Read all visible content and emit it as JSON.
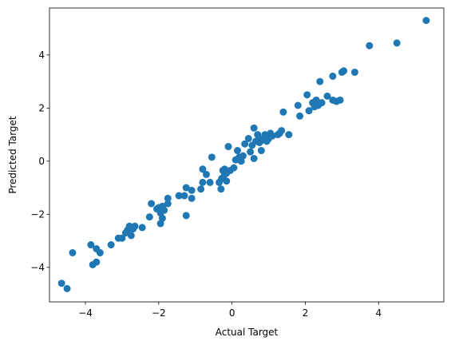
{
  "chart_data": {
    "type": "scatter",
    "title": "",
    "xlabel": "Actual Target",
    "ylabel": "Predicted Target",
    "xlim": [
      -4.98,
      5.78
    ],
    "ylim": [
      -5.3,
      5.77
    ],
    "xticks": [
      -4,
      -2,
      0,
      2,
      4
    ],
    "yticks": [
      -4,
      -2,
      0,
      2,
      4
    ],
    "xtick_labels": [
      "−4",
      "−2",
      "0",
      "2",
      "4"
    ],
    "ytick_labels": [
      "−4",
      "−2",
      "0",
      "2",
      "4"
    ],
    "grid": false,
    "legend": "none",
    "marker_color": "#1f77b4",
    "series": [
      {
        "points": [
          {
            "x": -4.65,
            "y": -4.6
          },
          {
            "x": -4.5,
            "y": -4.8
          },
          {
            "x": -4.35,
            "y": -3.45
          },
          {
            "x": -3.85,
            "y": -3.15
          },
          {
            "x": -3.8,
            "y": -3.9
          },
          {
            "x": -3.7,
            "y": -3.8
          },
          {
            "x": -3.7,
            "y": -3.3
          },
          {
            "x": -3.6,
            "y": -3.45
          },
          {
            "x": -3.3,
            "y": -3.15
          },
          {
            "x": -3.1,
            "y": -2.9
          },
          {
            "x": -3.0,
            "y": -2.9
          },
          {
            "x": -2.9,
            "y": -2.7
          },
          {
            "x": -2.85,
            "y": -2.6
          },
          {
            "x": -2.8,
            "y": -2.45
          },
          {
            "x": -2.75,
            "y": -2.8
          },
          {
            "x": -2.7,
            "y": -2.55
          },
          {
            "x": -2.65,
            "y": -2.45
          },
          {
            "x": -2.45,
            "y": -2.5
          },
          {
            "x": -2.25,
            "y": -2.1
          },
          {
            "x": -2.2,
            "y": -1.6
          },
          {
            "x": -2.05,
            "y": -1.8
          },
          {
            "x": -2.0,
            "y": -1.75
          },
          {
            "x": -1.95,
            "y": -2.35
          },
          {
            "x": -1.95,
            "y": -1.95
          },
          {
            "x": -1.9,
            "y": -2.15
          },
          {
            "x": -1.9,
            "y": -1.7
          },
          {
            "x": -1.85,
            "y": -1.85
          },
          {
            "x": -1.75,
            "y": -1.4
          },
          {
            "x": -1.75,
            "y": -1.6
          },
          {
            "x": -1.45,
            "y": -1.3
          },
          {
            "x": -1.3,
            "y": -1.3
          },
          {
            "x": -1.25,
            "y": -2.05
          },
          {
            "x": -1.25,
            "y": -1.0
          },
          {
            "x": -1.1,
            "y": -1.4
          },
          {
            "x": -1.1,
            "y": -1.1
          },
          {
            "x": -0.85,
            "y": -1.05
          },
          {
            "x": -0.8,
            "y": -0.8
          },
          {
            "x": -0.8,
            "y": -0.3
          },
          {
            "x": -0.7,
            "y": -0.5
          },
          {
            "x": -0.6,
            "y": -0.8
          },
          {
            "x": -0.55,
            "y": 0.15
          },
          {
            "x": -0.35,
            "y": -0.8
          },
          {
            "x": -0.3,
            "y": -1.05
          },
          {
            "x": -0.28,
            "y": -0.65
          },
          {
            "x": -0.25,
            "y": -0.35
          },
          {
            "x": -0.2,
            "y": -0.3
          },
          {
            "x": -0.2,
            "y": -0.5
          },
          {
            "x": -0.15,
            "y": -0.75
          },
          {
            "x": -0.15,
            "y": -0.45
          },
          {
            "x": -0.1,
            "y": 0.55
          },
          {
            "x": -0.05,
            "y": -0.35
          },
          {
            "x": 0.05,
            "y": -0.25
          },
          {
            "x": 0.1,
            "y": 0.05
          },
          {
            "x": 0.15,
            "y": 0.4
          },
          {
            "x": 0.2,
            "y": 0.15
          },
          {
            "x": 0.25,
            "y": 0.0
          },
          {
            "x": 0.3,
            "y": 0.2
          },
          {
            "x": 0.35,
            "y": 0.65
          },
          {
            "x": 0.45,
            "y": 0.85
          },
          {
            "x": 0.5,
            "y": 0.35
          },
          {
            "x": 0.55,
            "y": 0.6
          },
          {
            "x": 0.6,
            "y": 1.25
          },
          {
            "x": 0.6,
            "y": 0.1
          },
          {
            "x": 0.65,
            "y": 0.75
          },
          {
            "x": 0.7,
            "y": 1.0
          },
          {
            "x": 0.75,
            "y": 0.85
          },
          {
            "x": 0.75,
            "y": 0.7
          },
          {
            "x": 0.8,
            "y": 0.4
          },
          {
            "x": 0.85,
            "y": 0.8
          },
          {
            "x": 0.9,
            "y": 1.0
          },
          {
            "x": 0.95,
            "y": 0.75
          },
          {
            "x": 1.0,
            "y": 0.85
          },
          {
            "x": 1.05,
            "y": 1.05
          },
          {
            "x": 1.1,
            "y": 0.95
          },
          {
            "x": 1.25,
            "y": 1.0
          },
          {
            "x": 1.3,
            "y": 1.05
          },
          {
            "x": 1.35,
            "y": 1.15
          },
          {
            "x": 1.4,
            "y": 1.85
          },
          {
            "x": 1.55,
            "y": 1.0
          },
          {
            "x": 1.8,
            "y": 2.1
          },
          {
            "x": 1.85,
            "y": 1.7
          },
          {
            "x": 2.05,
            "y": 2.5
          },
          {
            "x": 2.1,
            "y": 1.9
          },
          {
            "x": 2.2,
            "y": 2.2
          },
          {
            "x": 2.25,
            "y": 2.05
          },
          {
            "x": 2.3,
            "y": 2.3
          },
          {
            "x": 2.35,
            "y": 2.1
          },
          {
            "x": 2.4,
            "y": 3.0
          },
          {
            "x": 2.45,
            "y": 2.2
          },
          {
            "x": 2.6,
            "y": 2.45
          },
          {
            "x": 2.75,
            "y": 2.3
          },
          {
            "x": 2.75,
            "y": 3.2
          },
          {
            "x": 2.85,
            "y": 2.25
          },
          {
            "x": 2.95,
            "y": 2.3
          },
          {
            "x": 3.0,
            "y": 3.35
          },
          {
            "x": 3.05,
            "y": 3.4
          },
          {
            "x": 3.35,
            "y": 3.35
          },
          {
            "x": 3.75,
            "y": 4.35
          },
          {
            "x": 4.5,
            "y": 4.45
          },
          {
            "x": 5.3,
            "y": 5.3
          }
        ]
      }
    ]
  }
}
